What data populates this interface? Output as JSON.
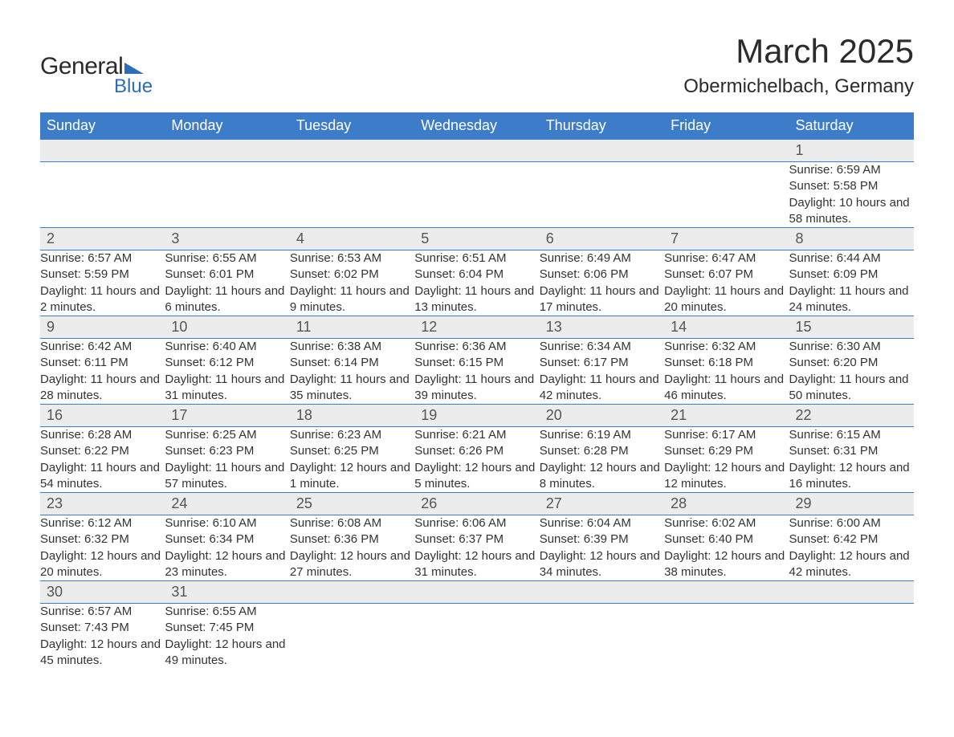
{
  "logo": {
    "text1": "General",
    "text2": "Blue"
  },
  "title": "March 2025",
  "location": "Obermichelbach, Germany",
  "columns": [
    "Sunday",
    "Monday",
    "Tuesday",
    "Wednesday",
    "Thursday",
    "Friday",
    "Saturday"
  ],
  "style": {
    "header_bg": "#3d7cc9",
    "header_fg": "#ffffff",
    "row_sep_color": "#3d7cc9",
    "daynum_bg": "#ececec",
    "body_bg": "#ffffff",
    "text_color": "#333333",
    "title_fontsize": 42,
    "location_fontsize": 24,
    "header_fontsize": 18,
    "cell_fontsize": 15
  },
  "weeks": [
    [
      null,
      null,
      null,
      null,
      null,
      null,
      {
        "n": "1",
        "sunrise": "6:59 AM",
        "sunset": "5:58 PM",
        "day_h": "10",
        "day_m": "58"
      }
    ],
    [
      {
        "n": "2",
        "sunrise": "6:57 AM",
        "sunset": "5:59 PM",
        "day_h": "11",
        "day_m": "2"
      },
      {
        "n": "3",
        "sunrise": "6:55 AM",
        "sunset": "6:01 PM",
        "day_h": "11",
        "day_m": "6"
      },
      {
        "n": "4",
        "sunrise": "6:53 AM",
        "sunset": "6:02 PM",
        "day_h": "11",
        "day_m": "9"
      },
      {
        "n": "5",
        "sunrise": "6:51 AM",
        "sunset": "6:04 PM",
        "day_h": "11",
        "day_m": "13"
      },
      {
        "n": "6",
        "sunrise": "6:49 AM",
        "sunset": "6:06 PM",
        "day_h": "11",
        "day_m": "17"
      },
      {
        "n": "7",
        "sunrise": "6:47 AM",
        "sunset": "6:07 PM",
        "day_h": "11",
        "day_m": "20"
      },
      {
        "n": "8",
        "sunrise": "6:44 AM",
        "sunset": "6:09 PM",
        "day_h": "11",
        "day_m": "24"
      }
    ],
    [
      {
        "n": "9",
        "sunrise": "6:42 AM",
        "sunset": "6:11 PM",
        "day_h": "11",
        "day_m": "28"
      },
      {
        "n": "10",
        "sunrise": "6:40 AM",
        "sunset": "6:12 PM",
        "day_h": "11",
        "day_m": "31"
      },
      {
        "n": "11",
        "sunrise": "6:38 AM",
        "sunset": "6:14 PM",
        "day_h": "11",
        "day_m": "35"
      },
      {
        "n": "12",
        "sunrise": "6:36 AM",
        "sunset": "6:15 PM",
        "day_h": "11",
        "day_m": "39"
      },
      {
        "n": "13",
        "sunrise": "6:34 AM",
        "sunset": "6:17 PM",
        "day_h": "11",
        "day_m": "42"
      },
      {
        "n": "14",
        "sunrise": "6:32 AM",
        "sunset": "6:18 PM",
        "day_h": "11",
        "day_m": "46"
      },
      {
        "n": "15",
        "sunrise": "6:30 AM",
        "sunset": "6:20 PM",
        "day_h": "11",
        "day_m": "50"
      }
    ],
    [
      {
        "n": "16",
        "sunrise": "6:28 AM",
        "sunset": "6:22 PM",
        "day_h": "11",
        "day_m": "54"
      },
      {
        "n": "17",
        "sunrise": "6:25 AM",
        "sunset": "6:23 PM",
        "day_h": "11",
        "day_m": "57"
      },
      {
        "n": "18",
        "sunrise": "6:23 AM",
        "sunset": "6:25 PM",
        "day_h": "12",
        "day_m": "1"
      },
      {
        "n": "19",
        "sunrise": "6:21 AM",
        "sunset": "6:26 PM",
        "day_h": "12",
        "day_m": "5"
      },
      {
        "n": "20",
        "sunrise": "6:19 AM",
        "sunset": "6:28 PM",
        "day_h": "12",
        "day_m": "8"
      },
      {
        "n": "21",
        "sunrise": "6:17 AM",
        "sunset": "6:29 PM",
        "day_h": "12",
        "day_m": "12"
      },
      {
        "n": "22",
        "sunrise": "6:15 AM",
        "sunset": "6:31 PM",
        "day_h": "12",
        "day_m": "16"
      }
    ],
    [
      {
        "n": "23",
        "sunrise": "6:12 AM",
        "sunset": "6:32 PM",
        "day_h": "12",
        "day_m": "20"
      },
      {
        "n": "24",
        "sunrise": "6:10 AM",
        "sunset": "6:34 PM",
        "day_h": "12",
        "day_m": "23"
      },
      {
        "n": "25",
        "sunrise": "6:08 AM",
        "sunset": "6:36 PM",
        "day_h": "12",
        "day_m": "27"
      },
      {
        "n": "26",
        "sunrise": "6:06 AM",
        "sunset": "6:37 PM",
        "day_h": "12",
        "day_m": "31"
      },
      {
        "n": "27",
        "sunrise": "6:04 AM",
        "sunset": "6:39 PM",
        "day_h": "12",
        "day_m": "34"
      },
      {
        "n": "28",
        "sunrise": "6:02 AM",
        "sunset": "6:40 PM",
        "day_h": "12",
        "day_m": "38"
      },
      {
        "n": "29",
        "sunrise": "6:00 AM",
        "sunset": "6:42 PM",
        "day_h": "12",
        "day_m": "42"
      }
    ],
    [
      {
        "n": "30",
        "sunrise": "6:57 AM",
        "sunset": "7:43 PM",
        "day_h": "12",
        "day_m": "45"
      },
      {
        "n": "31",
        "sunrise": "6:55 AM",
        "sunset": "7:45 PM",
        "day_h": "12",
        "day_m": "49"
      },
      null,
      null,
      null,
      null,
      null
    ]
  ],
  "labels": {
    "sunrise": "Sunrise:",
    "sunset": "Sunset:",
    "daylight": "Daylight:"
  }
}
